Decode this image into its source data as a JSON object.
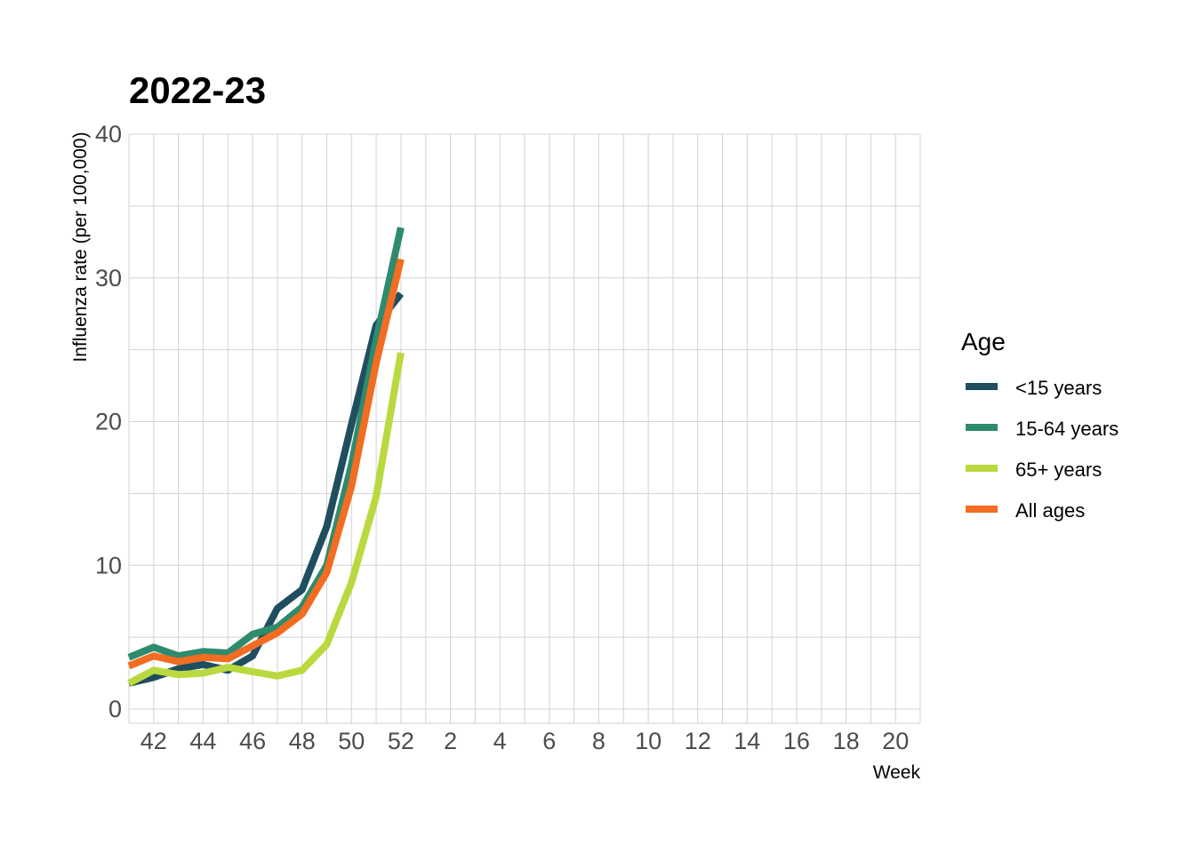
{
  "chart_data": {
    "type": "line",
    "title": "2022-23",
    "xlabel": "Week",
    "ylabel": "Influenza rate (per 100,000)",
    "ylim": [
      0,
      40
    ],
    "yticks": [
      "0",
      "10",
      "20",
      "30",
      "40"
    ],
    "weeks": [
      "41",
      "42",
      "43",
      "44",
      "45",
      "46",
      "47",
      "48",
      "49",
      "50",
      "51",
      "52",
      "1",
      "2",
      "3",
      "4",
      "5",
      "6",
      "7",
      "8",
      "9",
      "10",
      "11",
      "12",
      "13",
      "14",
      "15",
      "16",
      "17",
      "18",
      "19",
      "20",
      "21"
    ],
    "xtick_labels": [
      "42",
      "44",
      "46",
      "48",
      "50",
      "52",
      "2",
      "4",
      "6",
      "8",
      "10",
      "12",
      "14",
      "16",
      "18",
      "20"
    ],
    "grid": true,
    "legend_title": "Age",
    "legend_position": "right",
    "series": [
      {
        "name": "<15 years",
        "color": "#1f4e5f",
        "values": [
          1.8,
          2.2,
          2.8,
          3.1,
          2.7,
          3.7,
          7.0,
          8.3,
          12.7,
          19.8,
          26.7,
          28.9
        ]
      },
      {
        "name": "15-64 years",
        "color": "#2e8b6e",
        "values": [
          3.6,
          4.3,
          3.7,
          4.0,
          3.9,
          5.2,
          5.7,
          7.1,
          10.0,
          17.0,
          25.7,
          33.5
        ]
      },
      {
        "name": "65+ years",
        "color": "#b9d93f",
        "values": [
          1.8,
          2.7,
          2.4,
          2.5,
          2.9,
          2.6,
          2.3,
          2.7,
          4.5,
          8.8,
          14.8,
          24.8
        ]
      },
      {
        "name": "All ages",
        "color": "#f26c21",
        "values": [
          3.0,
          3.7,
          3.3,
          3.6,
          3.5,
          4.4,
          5.3,
          6.6,
          9.5,
          15.5,
          24.1,
          31.3
        ]
      }
    ]
  }
}
